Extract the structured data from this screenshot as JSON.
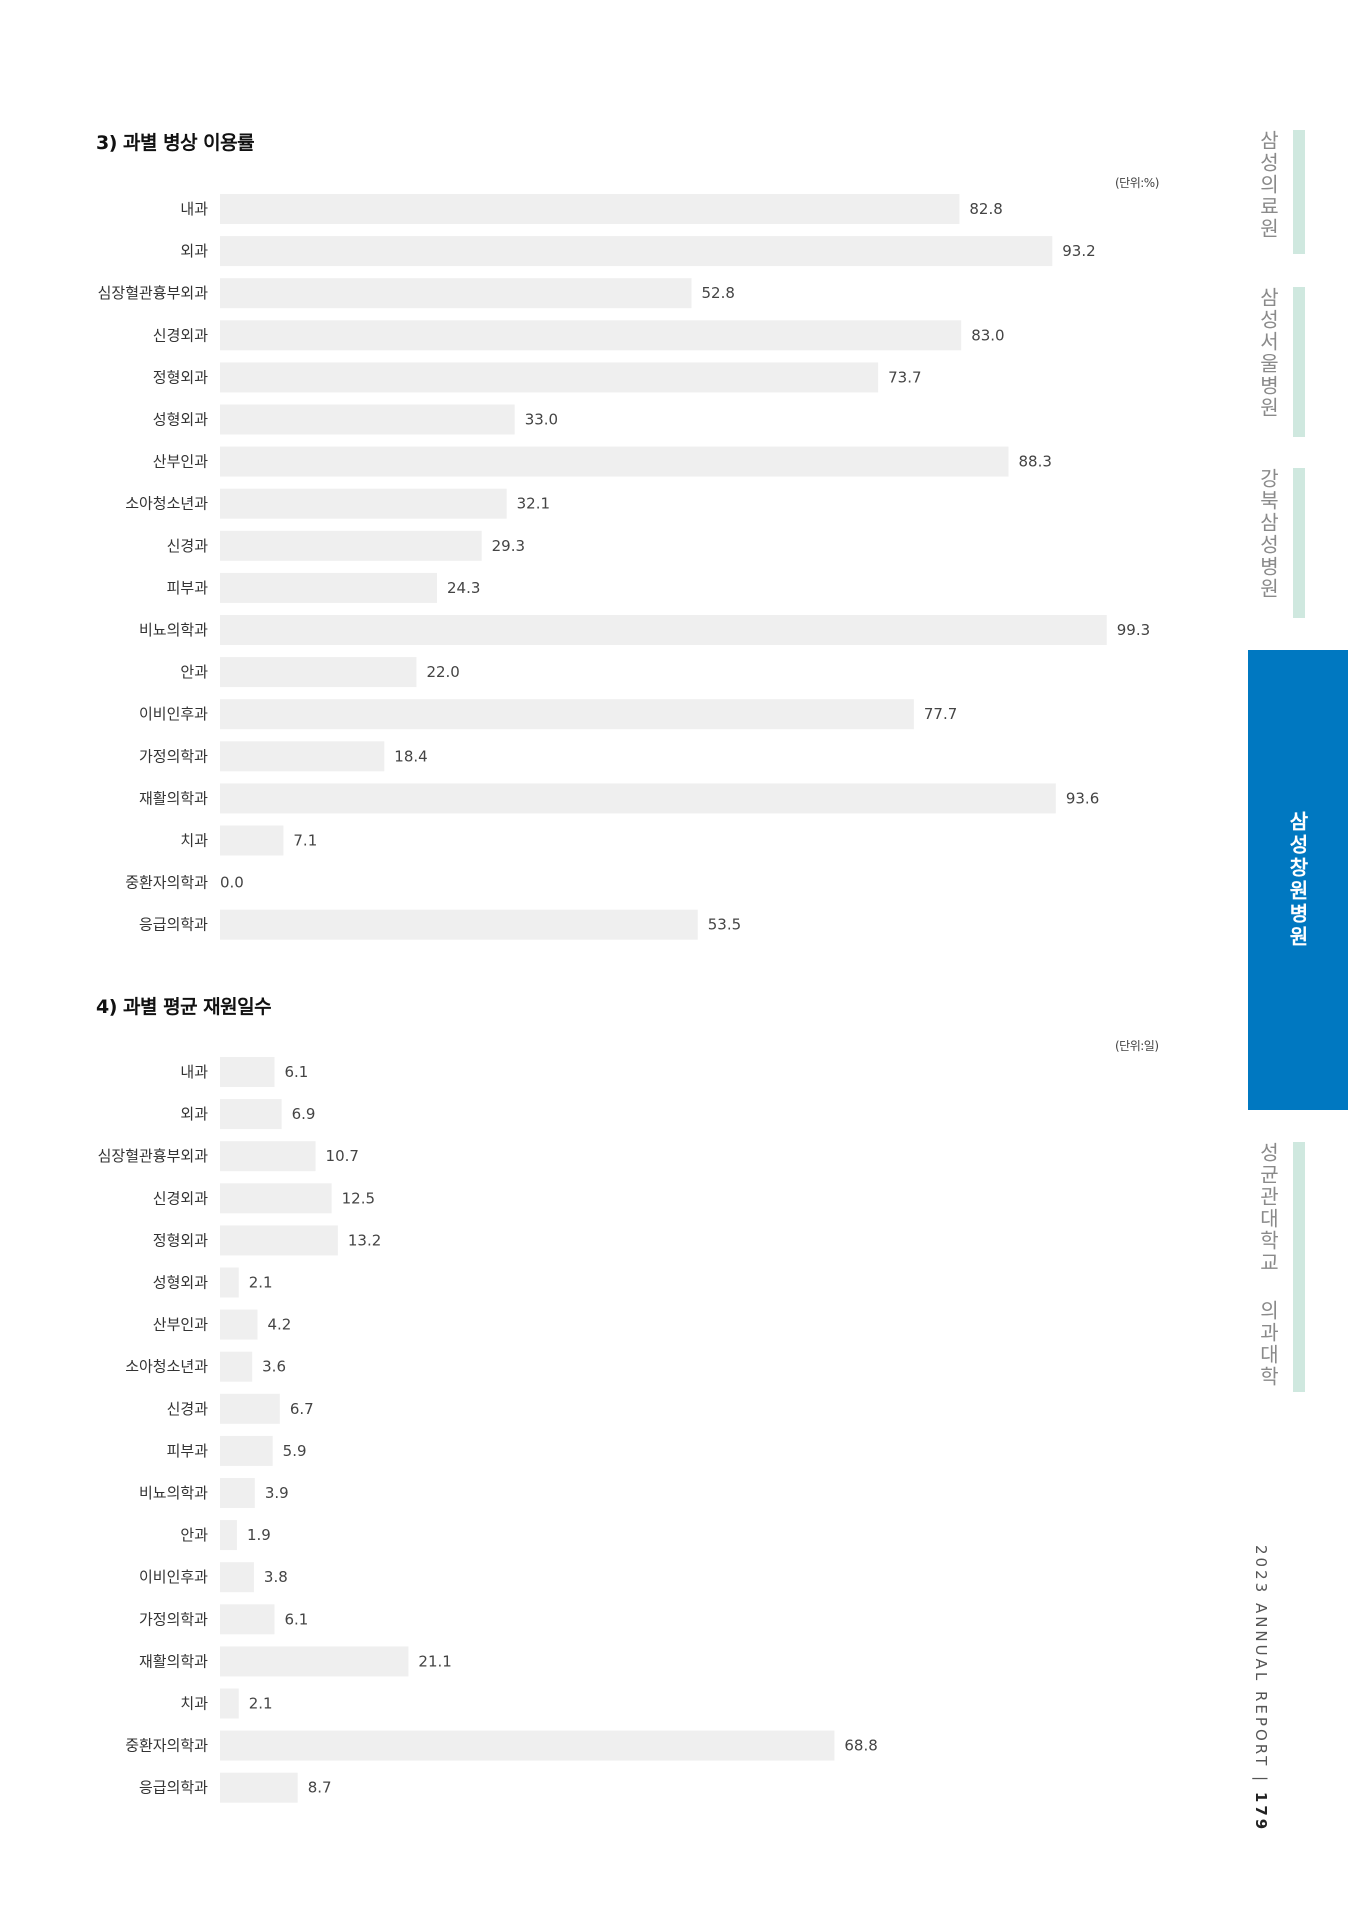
{
  "sidebar": {
    "tabs": [
      {
        "label": "삼성의료원",
        "active": false
      },
      {
        "label": "삼성서울병원",
        "active": false
      },
      {
        "label": "강북삼성병원",
        "active": false
      },
      {
        "label": "삼성창원병원",
        "active": true
      },
      {
        "label": "성균관대학교 의과대학",
        "active": false
      }
    ],
    "active_color": "#0078c1",
    "inactive_bar_color": "#cfe8df"
  },
  "footer": {
    "report": "2023 ANNUAL REPORT",
    "separator": "|",
    "page": "179"
  },
  "sections": [
    {
      "title": "3) 과별 병상 이용률",
      "unit": "(단위:%)"
    },
    {
      "title": "4) 과별 평균 재원일수",
      "unit": "(단위:일)"
    }
  ],
  "chart_data": [
    {
      "type": "bar",
      "orientation": "horizontal",
      "title": "3) 과별 병상 이용률",
      "unit": "(단위:%)",
      "categories": [
        "내과",
        "외과",
        "심장혈관흉부외과",
        "신경외과",
        "정형외과",
        "성형외과",
        "산부인과",
        "소아청소년과",
        "신경과",
        "피부과",
        "비뇨의학과",
        "안과",
        "이비인후과",
        "가정의학과",
        "재활의학과",
        "치과",
        "중환자의학과",
        "응급의학과"
      ],
      "values": [
        82.8,
        93.2,
        52.8,
        83.0,
        73.7,
        33.0,
        88.3,
        32.1,
        29.3,
        24.3,
        99.3,
        22.0,
        77.7,
        18.4,
        93.6,
        7.1,
        0.0,
        53.5
      ],
      "value_labels": [
        "82.8",
        "93.2",
        "52.8",
        "83.0",
        "73.7",
        "33.0",
        "88.3",
        "32.1",
        "29.3",
        "24.3",
        "99.3",
        "22.0",
        "77.7",
        "18.4",
        "93.6",
        "7.1",
        "0.0",
        "53.5"
      ],
      "xlim": [
        0,
        100
      ],
      "bar_color": "#efefef",
      "grid": false
    },
    {
      "type": "bar",
      "orientation": "horizontal",
      "title": "4) 과별 평균 재원일수",
      "unit": "(단위:일)",
      "categories": [
        "내과",
        "외과",
        "심장혈관흉부외과",
        "신경외과",
        "정형외과",
        "성형외과",
        "산부인과",
        "소아청소년과",
        "신경과",
        "피부과",
        "비뇨의학과",
        "안과",
        "이비인후과",
        "가정의학과",
        "재활의학과",
        "치과",
        "중환자의학과",
        "응급의학과"
      ],
      "values": [
        6.1,
        6.9,
        10.7,
        12.5,
        13.2,
        2.1,
        4.2,
        3.6,
        6.7,
        5.9,
        3.9,
        1.9,
        3.8,
        6.1,
        21.1,
        2.1,
        68.8,
        8.7
      ],
      "value_labels": [
        "6.1",
        "6.9",
        "10.7",
        "12.5",
        "13.2",
        "2.1",
        "4.2",
        "3.6",
        "6.7",
        "5.9",
        "3.9",
        "1.9",
        "3.8",
        "6.1",
        "21.1",
        "2.1",
        "68.8",
        "8.7"
      ],
      "xlim": [
        0,
        100
      ],
      "bar_color": "#efefef",
      "grid": false
    }
  ]
}
